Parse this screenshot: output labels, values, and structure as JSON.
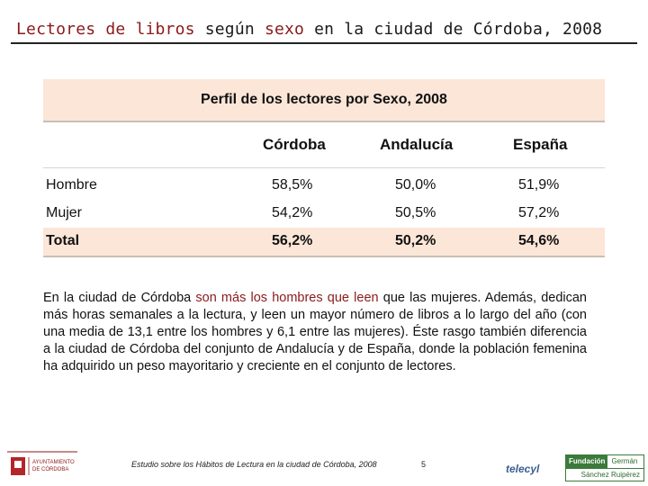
{
  "title": {
    "part1": "Lectores de libros",
    "part2": " según ",
    "part3": "sexo",
    "part4": " en la ciudad de Córdoba, 2008"
  },
  "table": {
    "heading": "Perfil de los lectores por Sexo, 2008",
    "columns": [
      "Córdoba",
      "Andalucía",
      "España"
    ],
    "rows": [
      {
        "label": "Hombre",
        "values": [
          "58,5%",
          "50,0%",
          "51,9%"
        ]
      },
      {
        "label": "Mujer",
        "values": [
          "54,2%",
          "50,5%",
          "57,2%"
        ]
      },
      {
        "label": "Total",
        "values": [
          "56,2%",
          "50,2%",
          "54,6%"
        ]
      }
    ]
  },
  "paragraph": {
    "before": "En la ciudad de Córdoba ",
    "highlight": "son más los hombres que leen",
    "after": " que las mujeres. Además, dedican más horas semanales a la lectura, y leen un mayor número de libros a lo largo del año (con una media de 13,1 entre los hombres y 6,1 entre las mujeres). Éste rasgo también diferencia a la ciudad de Córdoba del conjunto de Andalucía y de España, donde la población femenina ha adquirido un peso mayoritario y creciente en el conjunto de lectores",
    "end": "."
  },
  "footer": {
    "ayuntamiento_line1": "AYUNTAMIENTO",
    "ayuntamiento_line2": "DE CÓRDOBA",
    "study": "Estudio sobre los Hábitos de Lectura en la ciudad de Córdoba, 2008",
    "page": "5",
    "telecyl": "telecyl",
    "foundation_word": "Fundación",
    "foundation_name1": "Germán",
    "foundation_name2": "Sánchez Ruipérez"
  },
  "colors": {
    "accent_red": "#8b1a1a",
    "table_fill": "#fbe6d8",
    "foundation_green": "#3b7a3b"
  }
}
